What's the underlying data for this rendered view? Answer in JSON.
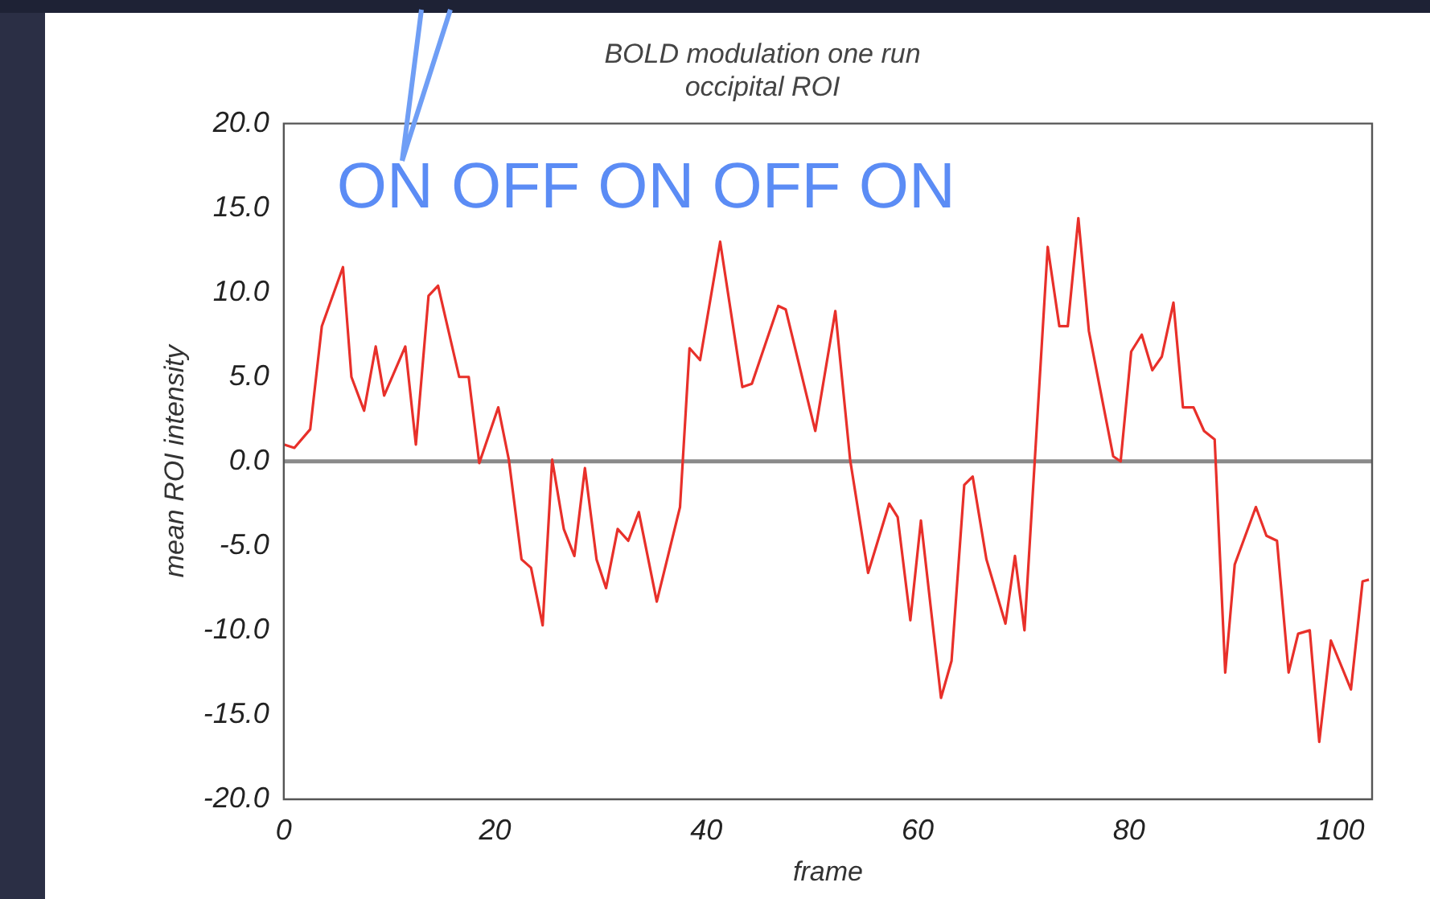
{
  "chart_data": {
    "type": "line",
    "title": "BOLD modulation one run\noccipital ROI",
    "xlabel": "frame",
    "ylabel": "mean ROI intensity",
    "annotations": [
      "ON OFF ON OFF ON"
    ],
    "xlim": [
      0,
      103
    ],
    "xticks": [
      0,
      20,
      40,
      60,
      80,
      100
    ],
    "ylim": [
      -20,
      20
    ],
    "yticks": [
      {
        "value": -20,
        "label": "-20.0"
      },
      {
        "value": -15,
        "label": "-15.0"
      },
      {
        "value": -10,
        "label": "-10.0"
      },
      {
        "value": -5,
        "label": "-5.0"
      },
      {
        "value": 0,
        "label": "0.0"
      },
      {
        "value": 5,
        "label": "5.0"
      },
      {
        "value": 10,
        "label": "10.0"
      },
      {
        "value": 15,
        "label": "15.0"
      },
      {
        "value": 20,
        "label": "20.0"
      }
    ],
    "grid": false,
    "legend": false,
    "marker": "none",
    "line_style": "solid",
    "ref_lines": [
      {
        "axis": "y",
        "value": 0,
        "color": "#8a8a8a"
      }
    ],
    "series": [
      {
        "color": "#e8302a",
        "x": [
          0,
          1,
          2.5,
          3.6,
          5.6,
          6.4,
          7.6,
          8.7,
          9.5,
          11.5,
          12.5,
          13.7,
          14.6,
          16.6,
          17.5,
          18.5,
          20.3,
          21.3,
          22.5,
          23.4,
          24.5,
          25.4,
          26.5,
          27.5,
          28.5,
          29.6,
          30.5,
          31.6,
          32.6,
          33.6,
          35.3,
          37.5,
          38.4,
          39.4,
          41.3,
          43.4,
          44.3,
          46.8,
          47.5,
          50.3,
          52.2,
          53.6,
          55.3,
          57.3,
          58.1,
          59.3,
          60.3,
          62.2,
          63.2,
          64.4,
          65.2,
          66.5,
          68.3,
          69.2,
          70.1,
          72.3,
          73.4,
          74.2,
          75.2,
          76.2,
          78.5,
          79.2,
          80.2,
          81.2,
          82.2,
          83.1,
          84.2,
          85.1,
          86.1,
          87.1,
          88.1,
          89.1,
          90,
          92,
          93,
          94,
          95.1,
          96,
          97.1,
          98,
          99.1,
          101,
          102.1,
          102.7
        ],
        "values": [
          1,
          0.8,
          1.9,
          8,
          11.5,
          5,
          3,
          6.8,
          3.9,
          6.8,
          1,
          9.8,
          10.4,
          5,
          5,
          -0.1,
          3.2,
          0.1,
          -5.8,
          -6.3,
          -9.7,
          0.1,
          -4,
          -5.6,
          -0.4,
          -5.8,
          -7.5,
          -4,
          -4.7,
          -3,
          -8.3,
          -2.7,
          6.7,
          6,
          13,
          4.4,
          4.6,
          9.2,
          9,
          1.8,
          8.9,
          0.1,
          -6.6,
          -2.5,
          -3.3,
          -9.4,
          -3.5,
          -14,
          -11.8,
          -1.4,
          -0.9,
          -5.8,
          -9.6,
          -5.6,
          -10,
          12.7,
          8,
          8,
          14.4,
          7.7,
          0.3,
          0,
          6.5,
          7.5,
          5.4,
          6.2,
          9.4,
          3.2,
          3.2,
          1.8,
          1.3,
          -12.5,
          -6.1,
          -2.7,
          -4.4,
          -4.7,
          -12.5,
          -10.2,
          -10,
          -16.6,
          -10.6,
          -13.5,
          -7.1,
          -7
        ]
      }
    ]
  }
}
